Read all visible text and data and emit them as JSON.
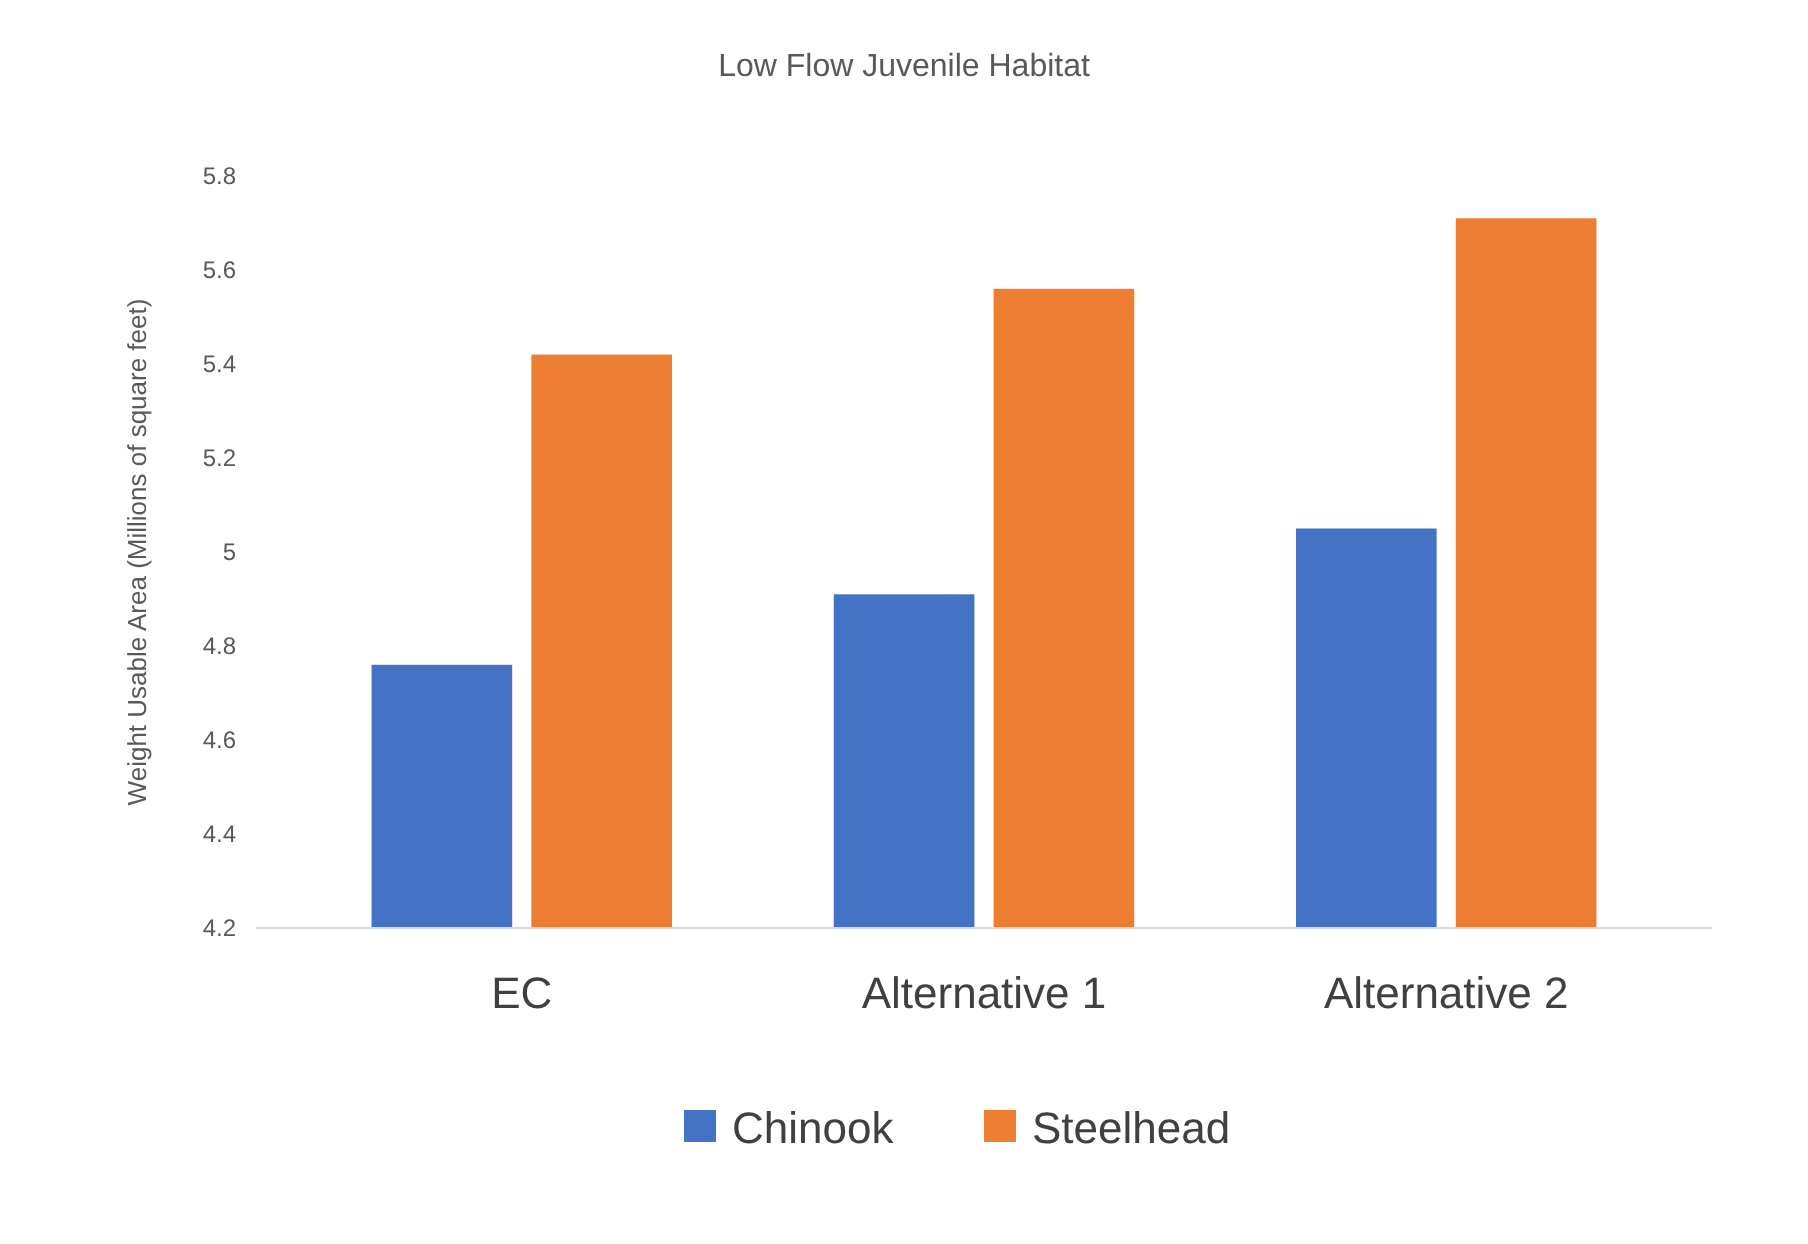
{
  "chart_data": {
    "type": "bar",
    "title": "Low Flow Juvenile Habitat",
    "ylabel": "Weight Usable Area (Millions of square feet)",
    "categories": [
      "EC",
      "Alternative 1",
      "Alternative 2"
    ],
    "series": [
      {
        "name": "Chinook",
        "color": "#4472c4",
        "values": [
          4.76,
          4.91,
          5.05
        ]
      },
      {
        "name": "Steelhead",
        "color": "#ed7d31",
        "values": [
          5.42,
          5.56,
          5.71
        ]
      }
    ],
    "ylim": [
      4.2,
      5.8
    ],
    "yticks": [
      4.2,
      4.4,
      4.6,
      4.8,
      5,
      5.2,
      5.4,
      5.6,
      5.8
    ],
    "grid": false,
    "legend": "bottom"
  }
}
